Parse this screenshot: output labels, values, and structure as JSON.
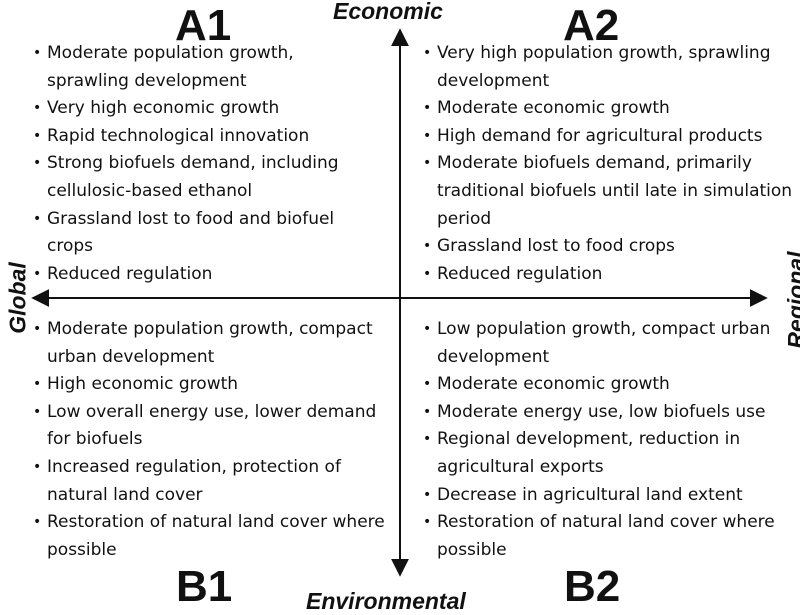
{
  "quadrants": {
    "a1": {
      "title": "A1",
      "bullets": [
        "Moderate population growth, sprawling development",
        "Very high economic growth",
        "Rapid technological innovation",
        "Strong biofuels demand, including cellulosic-based ethanol",
        "Grassland lost to food and biofuel crops",
        "Reduced regulation"
      ]
    },
    "a2": {
      "title": "A2",
      "bullets": [
        "Very high population growth, sprawling development",
        "Moderate economic growth",
        "High demand for agricultural products",
        "Moderate biofuels demand, primarily traditional biofuels until late in simulation period",
        "Grassland lost to food crops",
        "Reduced regulation"
      ]
    },
    "b1": {
      "title": "B1",
      "bullets": [
        "Moderate population growth, compact urban development",
        "High economic growth",
        "Low overall energy use, lower demand for biofuels",
        "Increased regulation, protection of natural land cover",
        "Restoration of natural land cover where possible"
      ]
    },
    "b2": {
      "title": "B2",
      "bullets": [
        "Low population growth, compact urban development",
        "Moderate economic growth",
        "Moderate energy use, low biofuels use",
        "Regional development, reduction in agricultural exports",
        "Decrease in agricultural land extent",
        "Restoration of natural land cover where possible"
      ]
    }
  },
  "axes": {
    "top": "Economic",
    "bottom": "Environmental",
    "left": "Global",
    "right": "Regional"
  }
}
